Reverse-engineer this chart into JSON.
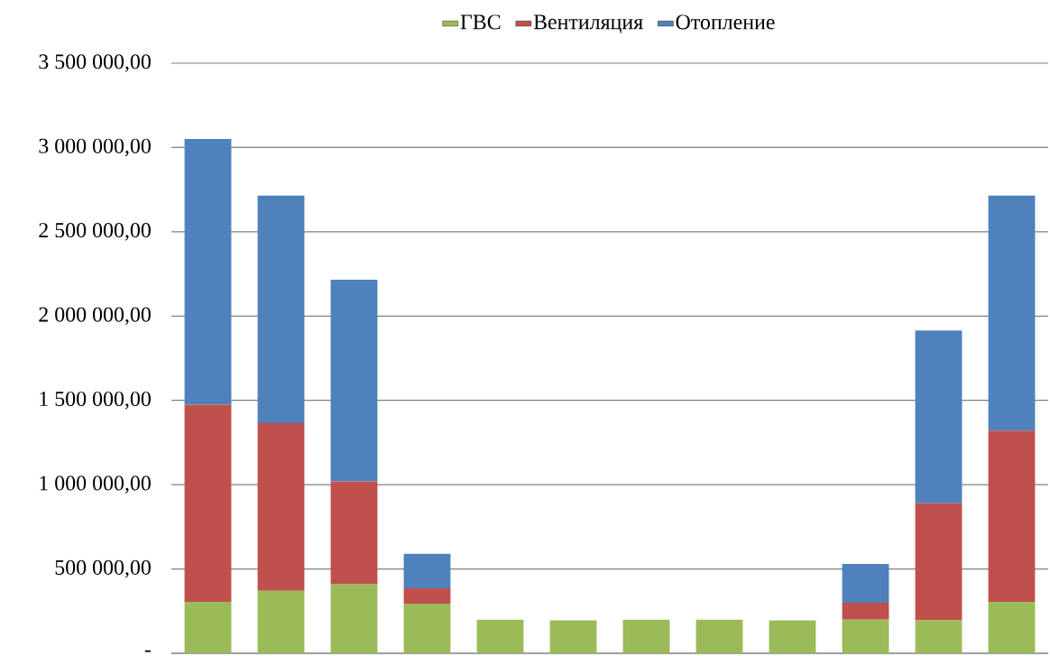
{
  "chart_data": {
    "type": "bar",
    "stacked": true,
    "categories": [
      null,
      null,
      null,
      null,
      null,
      null,
      null,
      null,
      null,
      null,
      null,
      null
    ],
    "series": [
      {
        "name": "ГВС",
        "color": "#9bbb59",
        "values": [
          305000,
          370000,
          410000,
          295000,
          200000,
          195000,
          200000,
          200000,
          195000,
          200000,
          195000,
          305000
        ]
      },
      {
        "name": "Вентиляция",
        "color": "#c0504d",
        "values": [
          1170000,
          995000,
          610000,
          90000,
          0,
          0,
          0,
          0,
          0,
          100000,
          695000,
          1015000
        ]
      },
      {
        "name": "Отопление",
        "color": "#4f81bd",
        "values": [
          1575000,
          1350000,
          1195000,
          205000,
          0,
          0,
          0,
          0,
          0,
          230000,
          1025000,
          1395000
        ]
      }
    ],
    "ylim": [
      0,
      3500000
    ],
    "yticks": [
      {
        "value": 0,
        "label": "-"
      },
      {
        "value": 500000,
        "label": "500 000,00"
      },
      {
        "value": 1000000,
        "label": "1 000 000,00"
      },
      {
        "value": 1500000,
        "label": "1 500 000,00"
      },
      {
        "value": 2000000,
        "label": "2 000 000,00"
      },
      {
        "value": 2500000,
        "label": "2 500 000,00"
      },
      {
        "value": 3000000,
        "label": "3 000 000,00"
      },
      {
        "value": 3500000,
        "label": "3 500 000,00"
      }
    ],
    "grid": "y",
    "legend": "top"
  }
}
